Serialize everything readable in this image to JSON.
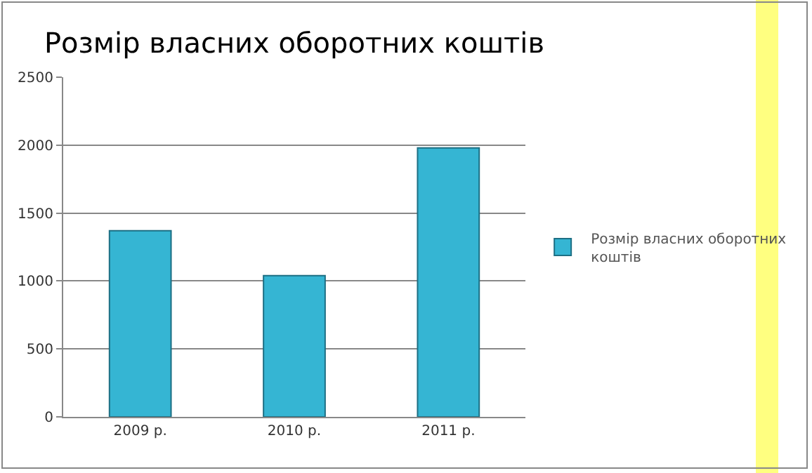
{
  "chart_data": {
    "type": "bar",
    "title": "Розмір власних оборотних коштів",
    "categories": [
      "2009 р.",
      "2010 р.",
      "2011 р."
    ],
    "series": [
      {
        "name": "Розмір власних оборотних коштів",
        "color": "#35b5d3",
        "values": [
          1370,
          1040,
          1980
        ]
      }
    ],
    "ylim": [
      0,
      2500
    ],
    "yticks": [
      0,
      500,
      1000,
      1500,
      2000,
      2500
    ],
    "grid": "y",
    "legend": "right"
  }
}
